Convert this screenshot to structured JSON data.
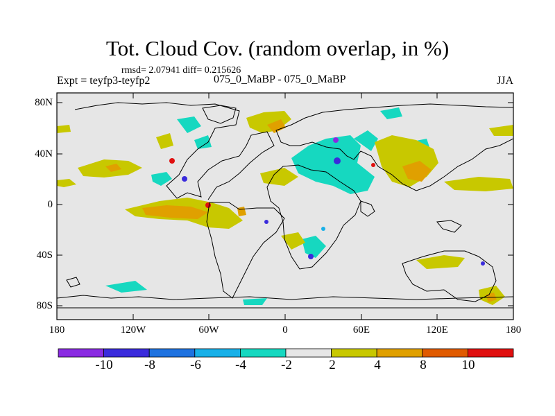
{
  "title": "Tot. Cloud Cov. (random overlap, in %)",
  "stats": "rmsd= 2.07941 diff= 0.215626",
  "left_label": "Expt = teyfp3-teyfp2",
  "center_label": "075_0_MaBP - 075_0_MaBP",
  "right_label": "JJA",
  "lat_ticks": [
    "80N",
    "40N",
    "0",
    "40S",
    "80S"
  ],
  "lon_ticks": [
    "180",
    "120W",
    "60W",
    "0",
    "60E",
    "120E",
    "180"
  ],
  "colorbar": {
    "labels": [
      "-10",
      "-8",
      "-6",
      "-4",
      "-2",
      "2",
      "4",
      "8",
      "10"
    ],
    "colors": [
      "#8a2be2",
      "#3a2bdc",
      "#1e72e0",
      "#18b0e8",
      "#16d8c0",
      "#e6e6e6",
      "#c8c800",
      "#e0a000",
      "#e05a00",
      "#e01010"
    ]
  },
  "map_colors": {
    "background": "#e6e6e6",
    "cyan": "#16d8c0",
    "sky": "#18b0e8",
    "blue": "#3a2bdc",
    "purple": "#8a2be2",
    "yellow": "#c8c800",
    "orange": "#e0a000",
    "dark_orange": "#e05a00",
    "red": "#e01010"
  }
}
